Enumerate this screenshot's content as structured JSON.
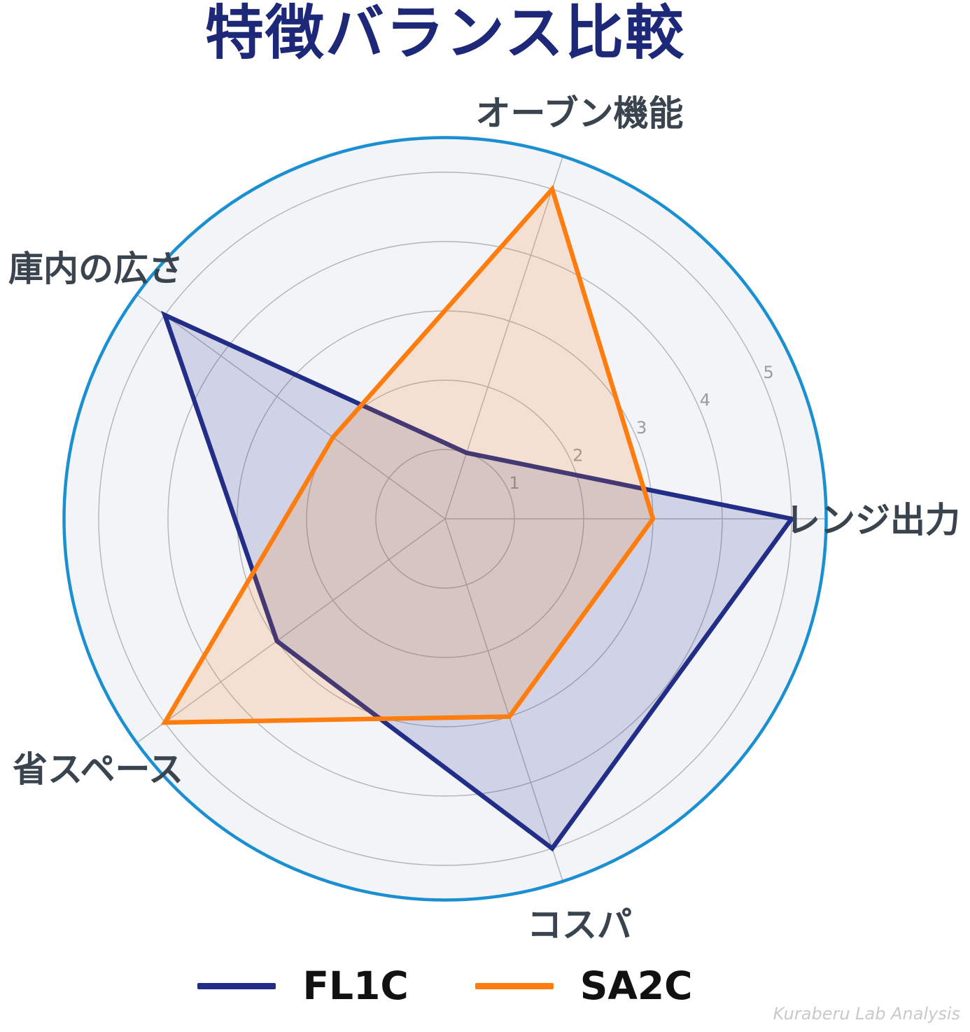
{
  "watermark": "Kuraberu Lab Analysis",
  "chart_data": {
    "type": "radar",
    "title": "特徴バランス比較",
    "categories": [
      "レンジ出力",
      "オーブン機能",
      "庫内の広さ",
      "省スペース",
      "コスパ"
    ],
    "angles_deg": [
      0,
      72,
      144,
      216,
      288
    ],
    "r_axis": {
      "ticks": [
        1,
        2,
        3,
        4,
        5
      ],
      "max": 5.5,
      "tick_angle_deg": 23.5,
      "tick_color": "#9a9aa0"
    },
    "series": [
      {
        "name": "FL1C",
        "values": [
          5,
          1,
          5,
          3,
          5
        ],
        "color": "#212d87",
        "fill": "rgba(33,45,135,0.16)"
      },
      {
        "name": "SA2C",
        "values": [
          3,
          5,
          2,
          5,
          3
        ],
        "color": "#ff7d0e",
        "fill": "rgba(255,125,14,0.16)"
      }
    ],
    "grid": true,
    "legend_position": "bottom",
    "colors": {
      "outer_ring": "#1a8fd1",
      "grid_line": "#b3b3b8",
      "plot_bg": "#f2f4f8",
      "label": "#3a444e",
      "title": "#1e2878"
    }
  }
}
